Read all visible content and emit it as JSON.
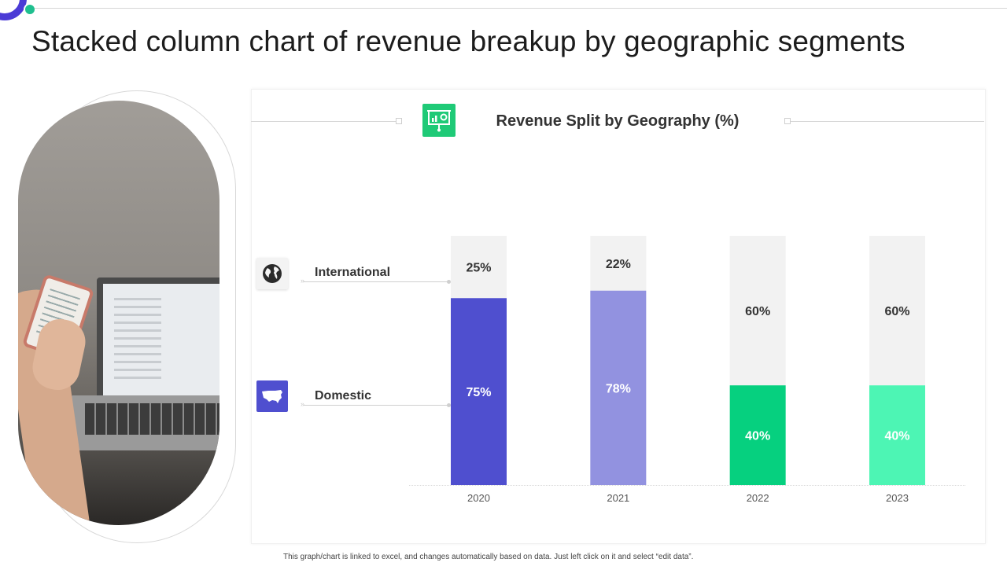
{
  "page": {
    "title": "Stacked column chart of revenue breakup by geographic segments",
    "footer_note": "This graph/chart is linked to excel, and changes automatically based on data. Just left click on it and select “edit data”."
  },
  "legend": {
    "international": {
      "label": "International",
      "icon": "globe-icon"
    },
    "domestic": {
      "label": "Domestic",
      "icon": "usa-map-icon"
    }
  },
  "colors": {
    "remainder": "#f2f2f2",
    "accent": "#4b3bd6",
    "title_icon": "#1fca77",
    "bars": [
      "#4f4fcf",
      "#9292e0",
      "#06d07f",
      "#4df5b4"
    ]
  },
  "chart_data": {
    "type": "bar",
    "stacked": true,
    "title": "Revenue Split by Geography (%)",
    "categories": [
      "2020",
      "2021",
      "2022",
      "2023"
    ],
    "series": [
      {
        "name": "Domestic",
        "values": [
          75,
          78,
          40,
          40
        ],
        "labels": [
          "75%",
          "78%",
          "40%",
          "40%"
        ]
      },
      {
        "name": "International",
        "values": [
          25,
          22,
          60,
          60
        ],
        "labels": [
          "25%",
          "22%",
          "60%",
          "60%"
        ]
      }
    ],
    "ylim": [
      0,
      100
    ],
    "xlabel": "",
    "ylabel": "",
    "grid": false
  }
}
